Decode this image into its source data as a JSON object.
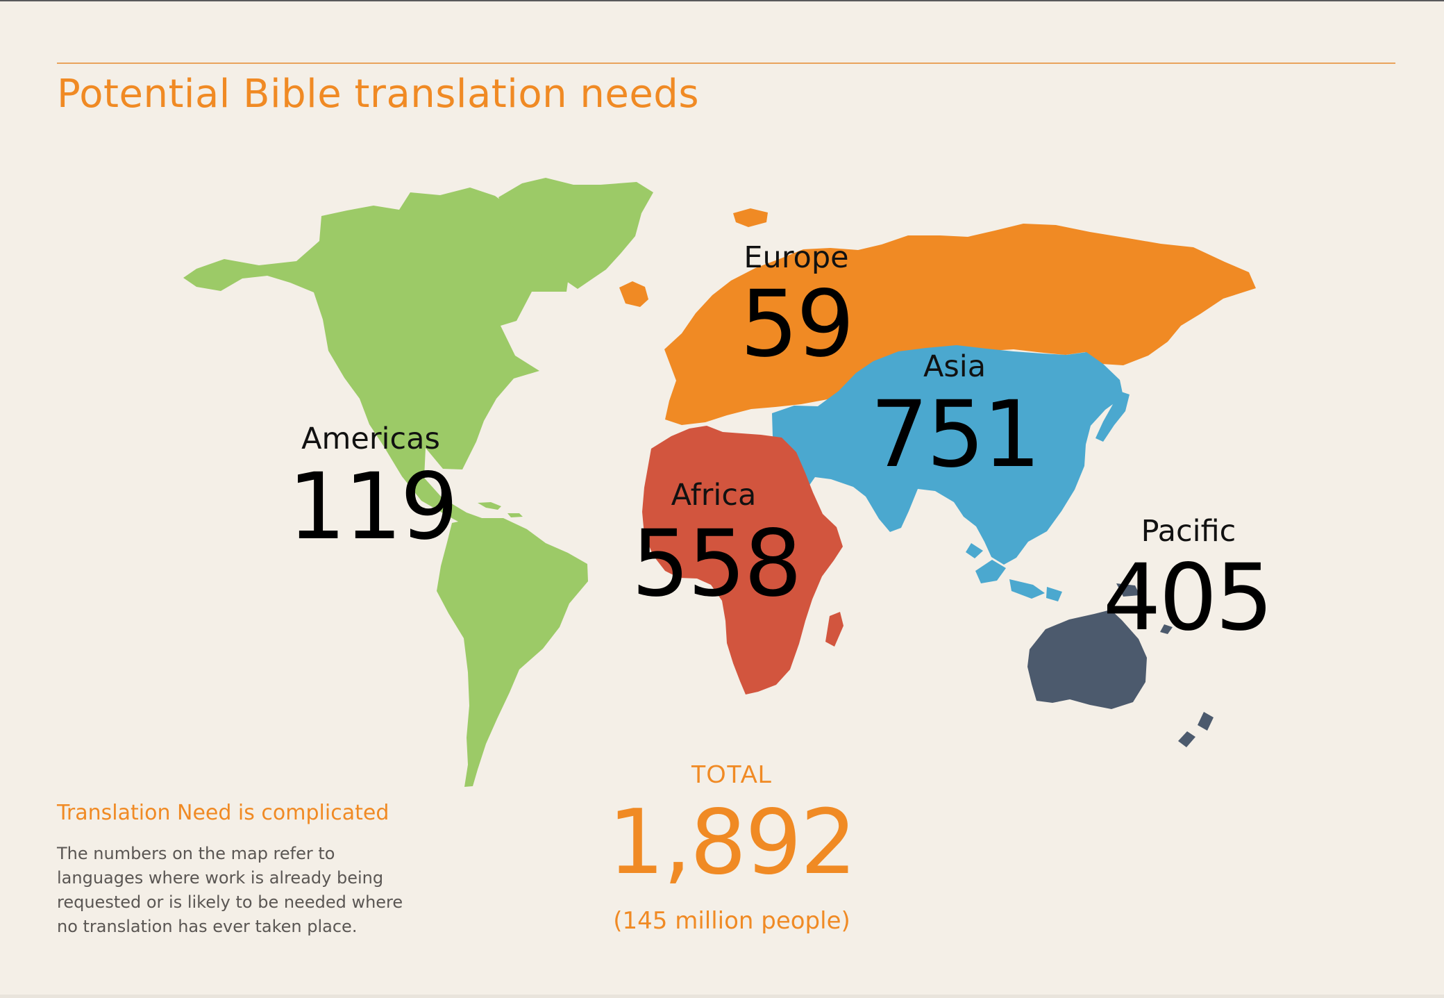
{
  "title": "Potential Bible translation needs",
  "colors": {
    "background": "#f4efe7",
    "accent": "#f08a24",
    "rule": "#e9a35c",
    "body_text": "#5a5653",
    "americas": "#9cca67",
    "europe": "#f08a24",
    "africa": "#d2553e",
    "asia": "#4ba8cf",
    "pacific": "#4c5a6d"
  },
  "regions": [
    {
      "id": "americas",
      "name": "Americas",
      "count": "119"
    },
    {
      "id": "europe",
      "name": "Europe",
      "count": "59"
    },
    {
      "id": "asia",
      "name": "Asia",
      "count": "751"
    },
    {
      "id": "africa",
      "name": "Africa",
      "count": "558"
    },
    {
      "id": "pacific",
      "name": "Pacific",
      "count": "405"
    }
  ],
  "total": {
    "label": "TOTAL",
    "value": "1,892",
    "people": "(145 million people)"
  },
  "note": {
    "heading": "Translation Need is complicated",
    "body": "The numbers on the map refer to\nlanguages where work is already being\nrequested or is likely to be needed where\nno translation has ever taken place."
  }
}
